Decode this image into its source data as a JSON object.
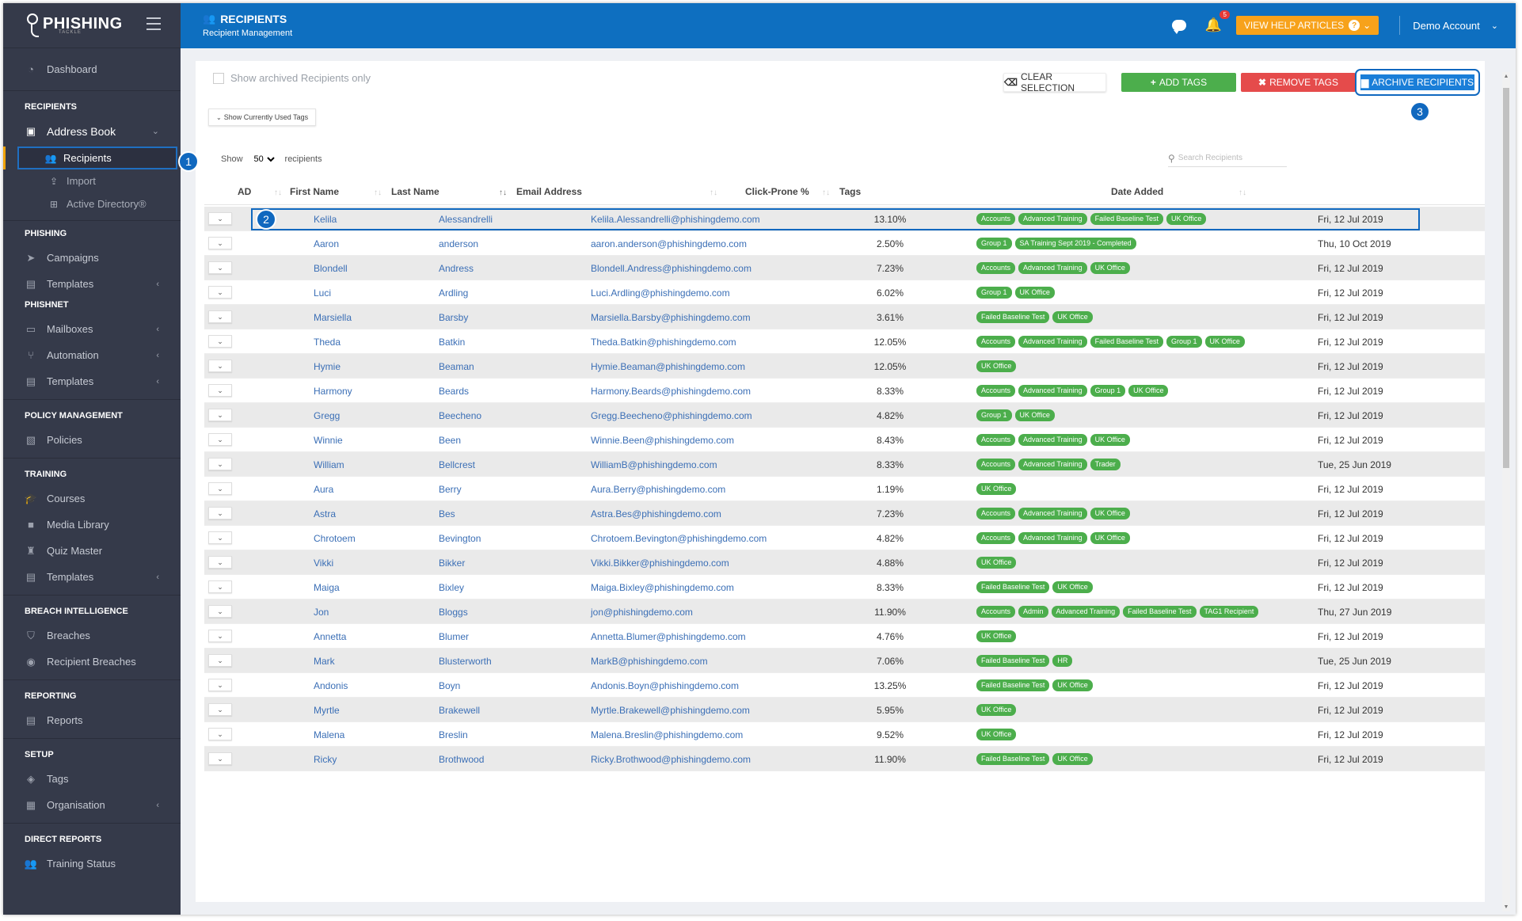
{
  "brand": {
    "name": "PHISHING",
    "sub": "TACKLE"
  },
  "header": {
    "title": "RECIPIENTS",
    "subtitle": "Recipient Management",
    "notifications": "5",
    "help_label": "VIEW HELP ARTICLES",
    "account": "Demo Account"
  },
  "sidebar": {
    "dashboard": "Dashboard",
    "sections": {
      "recipients": "RECIPIENTS",
      "phishing": "PHISHING",
      "phishnet": "PHISHNET",
      "policy": "POLICY MANAGEMENT",
      "training": "TRAINING",
      "breach": "BREACH INTELLIGENCE",
      "reporting": "REPORTING",
      "setup": "SETUP",
      "direct": "DIRECT REPORTS"
    },
    "address_book": "Address Book",
    "recipients": "Recipients",
    "import": "Import",
    "active_directory": "Active Directory®",
    "campaigns": "Campaigns",
    "templates": "Templates",
    "mailboxes": "Mailboxes",
    "automation": "Automation",
    "policies": "Policies",
    "courses": "Courses",
    "media_library": "Media Library",
    "quiz_master": "Quiz Master",
    "breaches": "Breaches",
    "recipient_breaches": "Recipient Breaches",
    "reports": "Reports",
    "tags": "Tags",
    "organisation": "Organisation",
    "training_status": "Training Status"
  },
  "toolbar": {
    "archived_only": "Show archived Recipients only",
    "show_tags": "Show Currently Used Tags",
    "clear": "CLEAR SELECTION",
    "add_tags": "ADD TAGS",
    "remove_tags": "REMOVE TAGS",
    "archive": "ARCHIVE RECIPIENTS"
  },
  "length": {
    "show": "Show",
    "value": "50",
    "suffix": "recipients"
  },
  "search": {
    "placeholder": "Search Recipients"
  },
  "columns": {
    "ad": "AD",
    "first": "First Name",
    "last": "Last Name",
    "email": "Email Address",
    "click": "Click-Prone %",
    "tags": "Tags",
    "date": "Date Added"
  },
  "callouts": [
    "1",
    "2",
    "3"
  ],
  "rows": [
    {
      "first": "Kelila",
      "last": "Alessandrelli",
      "email": "Kelila.Alessandrelli@phishingdemo.com",
      "click": "13.10%",
      "tags": [
        "Accounts",
        "Advanced Training",
        "Failed Baseline Test",
        "UK Office"
      ],
      "date": "Fri, 12 Jul 2019"
    },
    {
      "first": "Aaron",
      "last": "anderson",
      "email": "aaron.anderson@phishingdemo.com",
      "click": "2.50%",
      "tags": [
        "Group 1",
        "SA Training Sept 2019 - Completed"
      ],
      "date": "Thu, 10 Oct 2019"
    },
    {
      "first": "Blondell",
      "last": "Andress",
      "email": "Blondell.Andress@phishingdemo.com",
      "click": "7.23%",
      "tags": [
        "Accounts",
        "Advanced Training",
        "UK Office"
      ],
      "date": "Fri, 12 Jul 2019"
    },
    {
      "first": "Luci",
      "last": "Ardling",
      "email": "Luci.Ardling@phishingdemo.com",
      "click": "6.02%",
      "tags": [
        "Group 1",
        "UK Office"
      ],
      "date": "Fri, 12 Jul 2019"
    },
    {
      "first": "Marsiella",
      "last": "Barsby",
      "email": "Marsiella.Barsby@phishingdemo.com",
      "click": "3.61%",
      "tags": [
        "Failed Baseline Test",
        "UK Office"
      ],
      "date": "Fri, 12 Jul 2019"
    },
    {
      "first": "Theda",
      "last": "Batkin",
      "email": "Theda.Batkin@phishingdemo.com",
      "click": "12.05%",
      "tags": [
        "Accounts",
        "Advanced Training",
        "Failed Baseline Test",
        "Group 1",
        "UK Office"
      ],
      "date": "Fri, 12 Jul 2019"
    },
    {
      "first": "Hymie",
      "last": "Beaman",
      "email": "Hymie.Beaman@phishingdemo.com",
      "click": "12.05%",
      "tags": [
        "UK Office"
      ],
      "date": "Fri, 12 Jul 2019"
    },
    {
      "first": "Harmony",
      "last": "Beards",
      "email": "Harmony.Beards@phishingdemo.com",
      "click": "8.33%",
      "tags": [
        "Accounts",
        "Advanced Training",
        "Group 1",
        "UK Office"
      ],
      "date": "Fri, 12 Jul 2019"
    },
    {
      "first": "Gregg",
      "last": "Beecheno",
      "email": "Gregg.Beecheno@phishingdemo.com",
      "click": "4.82%",
      "tags": [
        "Group 1",
        "UK Office"
      ],
      "date": "Fri, 12 Jul 2019"
    },
    {
      "first": "Winnie",
      "last": "Been",
      "email": "Winnie.Been@phishingdemo.com",
      "click": "8.43%",
      "tags": [
        "Accounts",
        "Advanced Training",
        "UK Office"
      ],
      "date": "Fri, 12 Jul 2019"
    },
    {
      "first": "William",
      "last": "Bellcrest",
      "email": "WilliamB@phishingdemo.com",
      "click": "8.33%",
      "tags": [
        "Accounts",
        "Advanced Training",
        "Trader"
      ],
      "date": "Tue, 25 Jun 2019"
    },
    {
      "first": "Aura",
      "last": "Berry",
      "email": "Aura.Berry@phishingdemo.com",
      "click": "1.19%",
      "tags": [
        "UK Office"
      ],
      "date": "Fri, 12 Jul 2019"
    },
    {
      "first": "Astra",
      "last": "Bes",
      "email": "Astra.Bes@phishingdemo.com",
      "click": "7.23%",
      "tags": [
        "Accounts",
        "Advanced Training",
        "UK Office"
      ],
      "date": "Fri, 12 Jul 2019"
    },
    {
      "first": "Chrotoem",
      "last": "Bevington",
      "email": "Chrotoem.Bevington@phishingdemo.com",
      "click": "4.82%",
      "tags": [
        "Accounts",
        "Advanced Training",
        "UK Office"
      ],
      "date": "Fri, 12 Jul 2019"
    },
    {
      "first": "Vikki",
      "last": "Bikker",
      "email": "Vikki.Bikker@phishingdemo.com",
      "click": "4.88%",
      "tags": [
        "UK Office"
      ],
      "date": "Fri, 12 Jul 2019"
    },
    {
      "first": "Maiga",
      "last": "Bixley",
      "email": "Maiga.Bixley@phishingdemo.com",
      "click": "8.33%",
      "tags": [
        "Failed Baseline Test",
        "UK Office"
      ],
      "date": "Fri, 12 Jul 2019"
    },
    {
      "first": "Jon",
      "last": "Bloggs",
      "email": "jon@phishingdemo.com",
      "click": "11.90%",
      "tags": [
        "Accounts",
        "Admin",
        "Advanced Training",
        "Failed Baseline Test",
        "TAG1 Recipient"
      ],
      "date": "Thu, 27 Jun 2019"
    },
    {
      "first": "Annetta",
      "last": "Blumer",
      "email": "Annetta.Blumer@phishingdemo.com",
      "click": "4.76%",
      "tags": [
        "UK Office"
      ],
      "date": "Fri, 12 Jul 2019"
    },
    {
      "first": "Mark",
      "last": "Blusterworth",
      "email": "MarkB@phishingdemo.com",
      "click": "7.06%",
      "tags": [
        "Failed Baseline Test",
        "HR"
      ],
      "date": "Tue, 25 Jun 2019"
    },
    {
      "first": "Andonis",
      "last": "Boyn",
      "email": "Andonis.Boyn@phishingdemo.com",
      "click": "13.25%",
      "tags": [
        "Failed Baseline Test",
        "UK Office"
      ],
      "date": "Fri, 12 Jul 2019"
    },
    {
      "first": "Myrtle",
      "last": "Brakewell",
      "email": "Myrtle.Brakewell@phishingdemo.com",
      "click": "5.95%",
      "tags": [
        "UK Office"
      ],
      "date": "Fri, 12 Jul 2019"
    },
    {
      "first": "Malena",
      "last": "Breslin",
      "email": "Malena.Breslin@phishingdemo.com",
      "click": "9.52%",
      "tags": [
        "UK Office"
      ],
      "date": "Fri, 12 Jul 2019"
    },
    {
      "first": "Ricky",
      "last": "Brothwood",
      "email": "Ricky.Brothwood@phishingdemo.com",
      "click": "11.90%",
      "tags": [
        "Failed Baseline Test",
        "UK Office"
      ],
      "date": "Fri, 12 Jul 2019"
    }
  ],
  "colors": {
    "brand_blue": "#0e6fc0",
    "tag_green": "#4cae4c",
    "remove_red": "#e54b4b",
    "help_orange": "#f7a21b",
    "sidebar": "#353a4a"
  }
}
